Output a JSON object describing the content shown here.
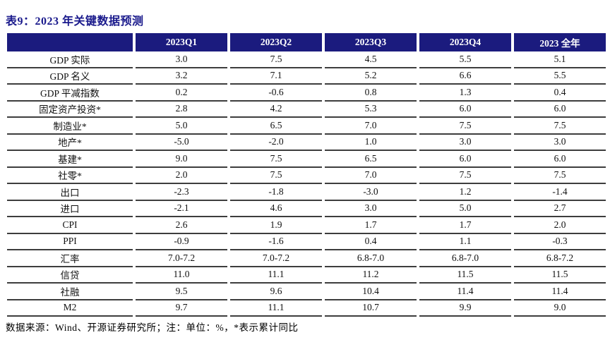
{
  "title": "表9：2023 年关键数据预测",
  "colors": {
    "header_bg": "#1b1b7e",
    "header_text": "#ffffff",
    "title_text": "#1a1a8c",
    "row_separator": "#3d3d3d"
  },
  "table": {
    "columns": [
      "",
      "2023Q1",
      "2023Q2",
      "2023Q3",
      "2023Q4",
      "2023 全年"
    ],
    "rows": [
      {
        "label": "GDP 实际",
        "values": [
          "3.0",
          "7.5",
          "4.5",
          "5.5",
          "5.1"
        ]
      },
      {
        "label": "GDP 名义",
        "values": [
          "3.2",
          "7.1",
          "5.2",
          "6.6",
          "5.5"
        ]
      },
      {
        "label": "GDP 平减指数",
        "values": [
          "0.2",
          "-0.6",
          "0.8",
          "1.3",
          "0.4"
        ]
      },
      {
        "label": "固定资产投资*",
        "values": [
          "2.8",
          "4.2",
          "5.3",
          "6.0",
          "6.0"
        ]
      },
      {
        "label": "制造业*",
        "values": [
          "5.0",
          "6.5",
          "7.0",
          "7.5",
          "7.5"
        ]
      },
      {
        "label": "地产*",
        "values": [
          "-5.0",
          "-2.0",
          "1.0",
          "3.0",
          "3.0"
        ]
      },
      {
        "label": "基建*",
        "values": [
          "9.0",
          "7.5",
          "6.5",
          "6.0",
          "6.0"
        ]
      },
      {
        "label": "社零*",
        "values": [
          "2.0",
          "7.5",
          "7.0",
          "7.5",
          "7.5"
        ]
      },
      {
        "label": "出口",
        "values": [
          "-2.3",
          "-1.8",
          "-3.0",
          "1.2",
          "-1.4"
        ]
      },
      {
        "label": "进口",
        "values": [
          "-2.1",
          "4.6",
          "3.0",
          "5.0",
          "2.7"
        ]
      },
      {
        "label": "CPI",
        "values": [
          "2.6",
          "1.9",
          "1.7",
          "1.7",
          "2.0"
        ]
      },
      {
        "label": "PPI",
        "values": [
          "-0.9",
          "-1.6",
          "0.4",
          "1.1",
          "-0.3"
        ]
      },
      {
        "label": "汇率",
        "values": [
          "7.0-7.2",
          "7.0-7.2",
          "6.8-7.0",
          "6.8-7.0",
          "6.8-7.2"
        ]
      },
      {
        "label": "信贷",
        "values": [
          "11.0",
          "11.1",
          "11.2",
          "11.5",
          "11.5"
        ]
      },
      {
        "label": "社融",
        "values": [
          "9.5",
          "9.6",
          "10.4",
          "11.4",
          "11.4"
        ]
      },
      {
        "label": "M2",
        "values": [
          "9.7",
          "11.1",
          "10.7",
          "9.9",
          "9.0"
        ]
      }
    ]
  },
  "footer": "数据来源：Wind、开源证券研究所；注：单位：%，*表示累计同比"
}
